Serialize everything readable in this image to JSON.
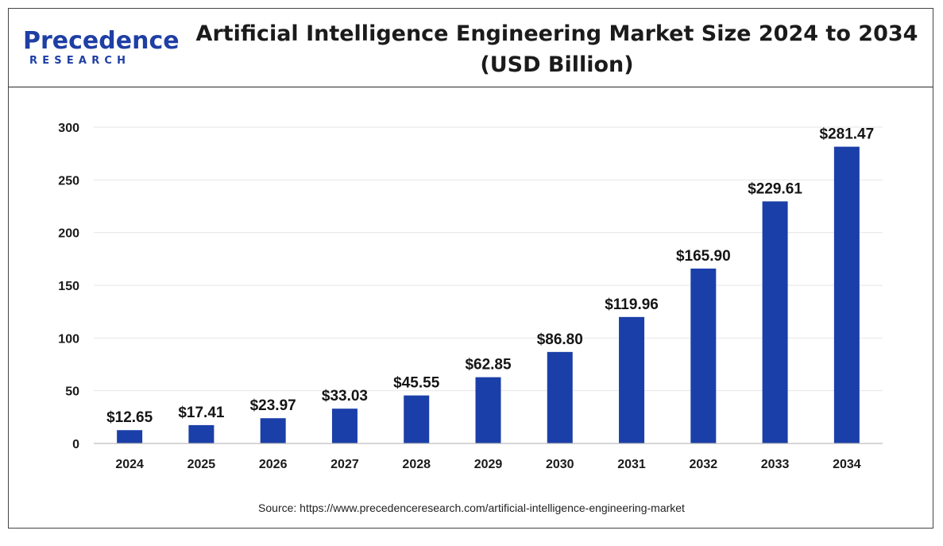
{
  "logo": {
    "top": "Precedence",
    "bottom": "RESEARCH"
  },
  "title_line1": "Artificial Intelligence Engineering Market Size 2024 to 2034",
  "title_line2": "(USD Billion)",
  "source": "Source: https://www.precedenceresearch.com/artificial-intelligence-engineering-market",
  "colors": {
    "bar": "#1b3fa8",
    "logo": "#1f3fa5",
    "grid": "#e6e6e6"
  },
  "chart_data": {
    "type": "bar",
    "title": "Artificial Intelligence Engineering Market Size 2024 to 2034 (USD Billion)",
    "xlabel": "",
    "ylabel": "",
    "categories": [
      "2024",
      "2025",
      "2026",
      "2027",
      "2028",
      "2029",
      "2030",
      "2031",
      "2032",
      "2033",
      "2034"
    ],
    "values": [
      12.65,
      17.41,
      23.97,
      33.03,
      45.55,
      62.85,
      86.8,
      119.96,
      165.9,
      229.61,
      281.47
    ],
    "value_labels": [
      "$12.65",
      "$17.41",
      "$23.97",
      "$33.03",
      "$45.55",
      "$62.85",
      "$86.80",
      "$119.96",
      "$165.90",
      "$229.61",
      "$281.47"
    ],
    "ylim": [
      0,
      300
    ],
    "yticks": [
      0,
      50,
      100,
      150,
      200,
      250,
      300
    ],
    "grid": true,
    "legend": "none"
  }
}
